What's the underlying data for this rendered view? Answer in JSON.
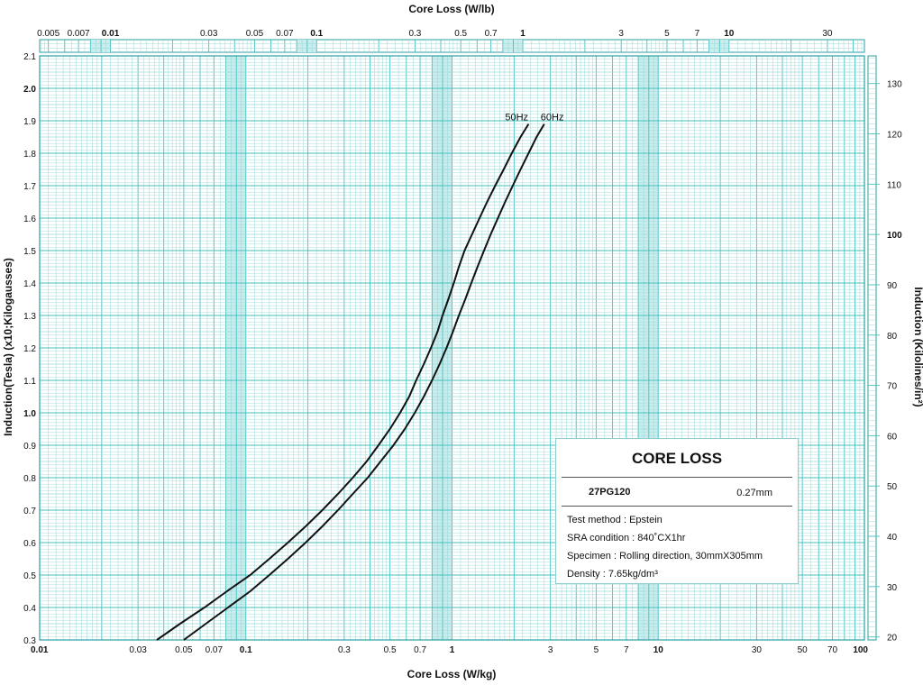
{
  "chart_data": {
    "type": "line",
    "title": "",
    "xlabel": "Core Loss (W/kg)",
    "x2label": "Core Loss (W/lb)",
    "ylabel": "Induction(Tesla) (x10;Kilogausses)",
    "y2label": "Induction (Kilolines/in²)",
    "xscale": "log",
    "xlim": [
      0.01,
      100
    ],
    "ylim": [
      0.3,
      2.1
    ],
    "y2lim": [
      19.4,
      135.5
    ],
    "x_tick_labels": [
      {
        "label": "0.01",
        "value": 0.01,
        "bold": true
      },
      {
        "label": "0.03",
        "value": 0.03
      },
      {
        "label": "0.05",
        "value": 0.05
      },
      {
        "label": "0.07",
        "value": 0.07
      },
      {
        "label": "0.1",
        "value": 0.1,
        "bold": true
      },
      {
        "label": "0.3",
        "value": 0.3
      },
      {
        "label": "0.5",
        "value": 0.5
      },
      {
        "label": "0.7",
        "value": 0.7
      },
      {
        "label": "1",
        "value": 1,
        "bold": true
      },
      {
        "label": "3",
        "value": 3
      },
      {
        "label": "5",
        "value": 5
      },
      {
        "label": "7",
        "value": 7
      },
      {
        "label": "10",
        "value": 10,
        "bold": true
      },
      {
        "label": "30",
        "value": 30
      },
      {
        "label": "50",
        "value": 50
      },
      {
        "label": "70",
        "value": 70
      },
      {
        "label": "100",
        "value": 100,
        "bold": true
      }
    ],
    "x2_tick_labels": [
      {
        "label": "0.005",
        "value": 0.005
      },
      {
        "label": "0.007",
        "value": 0.007
      },
      {
        "label": "0.01",
        "value": 0.01,
        "bold": true
      },
      {
        "label": "0.03",
        "value": 0.03
      },
      {
        "label": "0.05",
        "value": 0.05
      },
      {
        "label": "0.07",
        "value": 0.07
      },
      {
        "label": "0.1",
        "value": 0.1,
        "bold": true
      },
      {
        "label": "0.3",
        "value": 0.3
      },
      {
        "label": "0.5",
        "value": 0.5
      },
      {
        "label": "0.7",
        "value": 0.7
      },
      {
        "label": "1",
        "value": 1,
        "bold": true
      },
      {
        "label": "3",
        "value": 3
      },
      {
        "label": "5",
        "value": 5
      },
      {
        "label": "7",
        "value": 7
      },
      {
        "label": "10",
        "value": 10,
        "bold": true
      },
      {
        "label": "30",
        "value": 30
      }
    ],
    "y_tick_labels": [
      {
        "label": "0.3",
        "value": 0.3
      },
      {
        "label": "0.4",
        "value": 0.4
      },
      {
        "label": "0.5",
        "value": 0.5
      },
      {
        "label": "0.6",
        "value": 0.6
      },
      {
        "label": "0.7",
        "value": 0.7
      },
      {
        "label": "0.8",
        "value": 0.8
      },
      {
        "label": "0.9",
        "value": 0.9
      },
      {
        "label": "1.0",
        "value": 1.0,
        "bold": true
      },
      {
        "label": "1.1",
        "value": 1.1
      },
      {
        "label": "1.2",
        "value": 1.2
      },
      {
        "label": "1.3",
        "value": 1.3
      },
      {
        "label": "1.4",
        "value": 1.4
      },
      {
        "label": "1.5",
        "value": 1.5
      },
      {
        "label": "1.6",
        "value": 1.6
      },
      {
        "label": "1.7",
        "value": 1.7
      },
      {
        "label": "1.8",
        "value": 1.8
      },
      {
        "label": "1.9",
        "value": 1.9
      },
      {
        "label": "2.0",
        "value": 2.0,
        "bold": true
      },
      {
        "label": "2.1",
        "value": 2.1
      }
    ],
    "y2_tick_labels": [
      {
        "label": "20",
        "value": 20
      },
      {
        "label": "30",
        "value": 30
      },
      {
        "label": "40",
        "value": 40
      },
      {
        "label": "50",
        "value": 50
      },
      {
        "label": "60",
        "value": 60
      },
      {
        "label": "70",
        "value": 70
      },
      {
        "label": "80",
        "value": 80
      },
      {
        "label": "90",
        "value": 90
      },
      {
        "label": "100",
        "value": 100,
        "bold": true
      },
      {
        "label": "110",
        "value": 110
      },
      {
        "label": "120",
        "value": 120
      },
      {
        "label": "130",
        "value": 130
      }
    ],
    "grid": true,
    "series": [
      {
        "name": "50Hz",
        "points": [
          [
            0.037,
            0.3
          ],
          [
            0.048,
            0.35
          ],
          [
            0.063,
            0.4
          ],
          [
            0.081,
            0.45
          ],
          [
            0.105,
            0.5
          ],
          [
            0.13,
            0.55
          ],
          [
            0.16,
            0.6
          ],
          [
            0.195,
            0.65
          ],
          [
            0.235,
            0.7
          ],
          [
            0.28,
            0.75
          ],
          [
            0.33,
            0.8
          ],
          [
            0.385,
            0.85
          ],
          [
            0.44,
            0.9
          ],
          [
            0.5,
            0.95
          ],
          [
            0.56,
            1.0
          ],
          [
            0.62,
            1.05
          ],
          [
            0.67,
            1.1
          ],
          [
            0.73,
            1.15
          ],
          [
            0.79,
            1.2
          ],
          [
            0.85,
            1.25
          ],
          [
            0.9,
            1.3
          ],
          [
            0.96,
            1.35
          ],
          [
            1.02,
            1.4
          ],
          [
            1.08,
            1.45
          ],
          [
            1.15,
            1.5
          ],
          [
            1.25,
            1.55
          ],
          [
            1.36,
            1.6
          ],
          [
            1.48,
            1.65
          ],
          [
            1.62,
            1.7
          ],
          [
            1.78,
            1.75
          ],
          [
            1.95,
            1.8
          ],
          [
            2.15,
            1.85
          ],
          [
            2.35,
            1.89
          ]
        ]
      },
      {
        "name": "60Hz",
        "points": [
          [
            0.05,
            0.3
          ],
          [
            0.064,
            0.35
          ],
          [
            0.082,
            0.4
          ],
          [
            0.105,
            0.45
          ],
          [
            0.13,
            0.5
          ],
          [
            0.16,
            0.55
          ],
          [
            0.195,
            0.6
          ],
          [
            0.235,
            0.65
          ],
          [
            0.28,
            0.7
          ],
          [
            0.33,
            0.75
          ],
          [
            0.39,
            0.8
          ],
          [
            0.45,
            0.85
          ],
          [
            0.52,
            0.9
          ],
          [
            0.59,
            0.95
          ],
          [
            0.66,
            1.0
          ],
          [
            0.73,
            1.05
          ],
          [
            0.8,
            1.1
          ],
          [
            0.87,
            1.15
          ],
          [
            0.94,
            1.2
          ],
          [
            1.01,
            1.25
          ],
          [
            1.08,
            1.3
          ],
          [
            1.16,
            1.35
          ],
          [
            1.24,
            1.4
          ],
          [
            1.33,
            1.45
          ],
          [
            1.43,
            1.5
          ],
          [
            1.54,
            1.55
          ],
          [
            1.67,
            1.6
          ],
          [
            1.81,
            1.65
          ],
          [
            1.97,
            1.7
          ],
          [
            2.15,
            1.75
          ],
          [
            2.35,
            1.8
          ],
          [
            2.57,
            1.85
          ],
          [
            2.8,
            1.89
          ]
        ]
      }
    ]
  },
  "info_box": {
    "title": "CORE LOSS",
    "grade": "27PG120",
    "thickness": "0.27mm",
    "lines": [
      "Test method : Epstein",
      "SRA condition : 840˚CX1hr",
      "Specimen : Rolling direction, 30mmX305mm",
      "Density : 7.65kg/dm³"
    ]
  },
  "colors": {
    "grid": "#46bfc1",
    "grid_fine": "#9ad9da",
    "band": "#c9ecec",
    "curve": "#111111",
    "frame": "#2a9fa1"
  }
}
